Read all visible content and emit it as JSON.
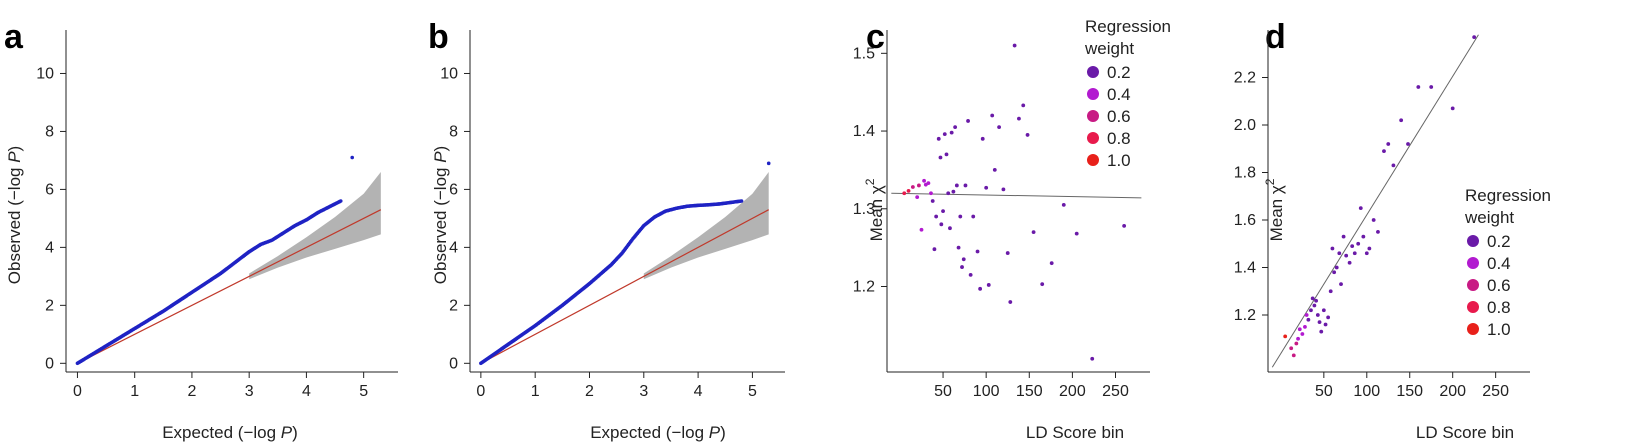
{
  "chart_data": [
    {
      "panel_label": "a",
      "type": "scatter",
      "xlabel": "Expected (−log P)",
      "ylabel": "Observed (−log P)",
      "xlim": [
        -0.2,
        5.6
      ],
      "ylim": [
        -0.3,
        11.5
      ],
      "xticks": [
        0,
        1,
        2,
        3,
        4,
        5
      ],
      "yticks": [
        0,
        2,
        4,
        6,
        8,
        10
      ],
      "points_color": "#1f23c4",
      "ref_line_color": "#c0392b",
      "band_color": "#b3b3b3",
      "series": [
        {
          "kind": "qq-curve",
          "x": [
            0,
            0.5,
            1.0,
            1.5,
            2.0,
            2.5,
            3.0,
            3.2,
            3.4,
            3.6,
            3.8,
            4.0,
            4.2,
            4.4,
            4.6,
            4.8
          ],
          "y": [
            0,
            0.6,
            1.2,
            1.8,
            2.45,
            3.1,
            3.85,
            4.1,
            4.25,
            4.5,
            4.75,
            4.95,
            5.2,
            5.4,
            5.6,
            7.1
          ]
        }
      ],
      "band": {
        "x": [
          3.0,
          3.5,
          4.0,
          4.5,
          5.0,
          5.3
        ],
        "lower": [
          2.9,
          3.3,
          3.65,
          3.95,
          4.25,
          4.45
        ],
        "upper": [
          3.1,
          3.7,
          4.35,
          5.05,
          5.85,
          6.6
        ]
      },
      "reference_line": {
        "x": [
          0,
          5.3
        ],
        "y": [
          0,
          5.3
        ]
      }
    },
    {
      "panel_label": "b",
      "type": "scatter",
      "xlabel": "Expected (−log P)",
      "ylabel": "Observed (−log P)",
      "xlim": [
        -0.2,
        5.6
      ],
      "ylim": [
        -0.3,
        11.5
      ],
      "xticks": [
        0,
        1,
        2,
        3,
        4,
        5
      ],
      "yticks": [
        0,
        2,
        4,
        6,
        8,
        10
      ],
      "points_color": "#1f23c4",
      "ref_line_color": "#c0392b",
      "band_color": "#b3b3b3",
      "series": [
        {
          "kind": "qq-curve",
          "x": [
            0,
            0.5,
            1.0,
            1.5,
            2.0,
            2.4,
            2.6,
            2.8,
            3.0,
            3.2,
            3.4,
            3.6,
            3.8,
            4.0,
            4.2,
            4.4,
            4.6,
            4.8,
            5.3
          ],
          "y": [
            0,
            0.65,
            1.3,
            2.0,
            2.75,
            3.4,
            3.8,
            4.3,
            4.75,
            5.05,
            5.25,
            5.35,
            5.42,
            5.45,
            5.47,
            5.5,
            5.55,
            5.6,
            6.9
          ]
        }
      ],
      "band": {
        "x": [
          3.0,
          3.5,
          4.0,
          4.5,
          5.0,
          5.3
        ],
        "lower": [
          2.9,
          3.3,
          3.65,
          3.95,
          4.25,
          4.45
        ],
        "upper": [
          3.1,
          3.7,
          4.35,
          5.05,
          5.85,
          6.6
        ]
      },
      "reference_line": {
        "x": [
          0,
          5.3
        ],
        "y": [
          0,
          5.3
        ]
      }
    },
    {
      "panel_label": "c",
      "type": "scatter",
      "xlabel": "LD Score bin",
      "ylabel": "Mean χ",
      "ylabel_sup": "2",
      "xlim": [
        -15,
        290
      ],
      "ylim": [
        1.09,
        1.53
      ],
      "xticks": [
        50,
        100,
        150,
        200,
        250
      ],
      "yticks": [
        1.2,
        1.3,
        1.4,
        1.5
      ],
      "legend_title": [
        "Regression",
        "weight"
      ],
      "legend_position": "top-right",
      "legend": [
        {
          "label": "0.2",
          "color": "#6a1aa8"
        },
        {
          "label": "0.4",
          "color": "#b21ad0"
        },
        {
          "label": "0.6",
          "color": "#c81a84"
        },
        {
          "label": "0.8",
          "color": "#e81a4c"
        },
        {
          "label": "1.0",
          "color": "#e8201a"
        }
      ],
      "points": [
        [
          5,
          1.32,
          0.9
        ],
        [
          10,
          1.323,
          0.8
        ],
        [
          15,
          1.328,
          0.6
        ],
        [
          20,
          1.315,
          0.5
        ],
        [
          22,
          1.33,
          0.6
        ],
        [
          25,
          1.273,
          0.4
        ],
        [
          28,
          1.336,
          0.5
        ],
        [
          30,
          1.331,
          0.5
        ],
        [
          33,
          1.333,
          0.4
        ],
        [
          36,
          1.32,
          0.4
        ],
        [
          38,
          1.31,
          0.3
        ],
        [
          40,
          1.248,
          0.3
        ],
        [
          42,
          1.29,
          0.3
        ],
        [
          45,
          1.39,
          0.3
        ],
        [
          47,
          1.366,
          0.3
        ],
        [
          48,
          1.28,
          0.3
        ],
        [
          50,
          1.297,
          0.3
        ],
        [
          52,
          1.396,
          0.2
        ],
        [
          54,
          1.37,
          0.2
        ],
        [
          56,
          1.32,
          0.2
        ],
        [
          58,
          1.275,
          0.2
        ],
        [
          60,
          1.398,
          0.2
        ],
        [
          62,
          1.322,
          0.2
        ],
        [
          64,
          1.405,
          0.2
        ],
        [
          66,
          1.33,
          0.2
        ],
        [
          68,
          1.25,
          0.2
        ],
        [
          70,
          1.29,
          0.2
        ],
        [
          72,
          1.225,
          0.2
        ],
        [
          74,
          1.235,
          0.2
        ],
        [
          76,
          1.33,
          0.2
        ],
        [
          79,
          1.413,
          0.2
        ],
        [
          82,
          1.215,
          0.2
        ],
        [
          85,
          1.29,
          0.2
        ],
        [
          90,
          1.245,
          0.2
        ],
        [
          93,
          1.197,
          0.2
        ],
        [
          96,
          1.39,
          0.2
        ],
        [
          100,
          1.327,
          0.2
        ],
        [
          103,
          1.202,
          0.2
        ],
        [
          107,
          1.42,
          0.2
        ],
        [
          110,
          1.35,
          0.2
        ],
        [
          115,
          1.405,
          0.2
        ],
        [
          120,
          1.325,
          0.2
        ],
        [
          125,
          1.243,
          0.2
        ],
        [
          128,
          1.18,
          0.2
        ],
        [
          133,
          1.51,
          0.2
        ],
        [
          138,
          1.416,
          0.2
        ],
        [
          143,
          1.433,
          0.2
        ],
        [
          148,
          1.395,
          0.2
        ],
        [
          155,
          1.27,
          0.2
        ],
        [
          165,
          1.203,
          0.2
        ],
        [
          176,
          1.23,
          0.2
        ],
        [
          190,
          1.305,
          0.2
        ],
        [
          205,
          1.268,
          0.2
        ],
        [
          223,
          1.107,
          0.2
        ],
        [
          260,
          1.278,
          0.2
        ]
      ],
      "reference_line": {
        "x": [
          -10,
          280
        ],
        "y": [
          1.32,
          1.314
        ]
      },
      "line_color": "#666666"
    },
    {
      "panel_label": "d",
      "type": "scatter",
      "xlabel": "LD Score bin",
      "ylabel": "Mean χ",
      "ylabel_sup": "2",
      "xlim": [
        -15,
        290
      ],
      "ylim": [
        0.96,
        2.4
      ],
      "xticks": [
        50,
        100,
        150,
        200,
        250
      ],
      "yticks": [
        1.2,
        1.4,
        1.6,
        1.8,
        2.0,
        2.2
      ],
      "legend_title": [
        "Regression",
        "weight"
      ],
      "legend_position": "right",
      "legend": [
        {
          "label": "0.2",
          "color": "#6a1aa8"
        },
        {
          "label": "0.4",
          "color": "#b21ad0"
        },
        {
          "label": "0.6",
          "color": "#c81a84"
        },
        {
          "label": "0.8",
          "color": "#e81a4c"
        },
        {
          "label": "1.0",
          "color": "#e8201a"
        }
      ],
      "points": [
        [
          5,
          1.11,
          1.0
        ],
        [
          12,
          1.06,
          0.7
        ],
        [
          15,
          1.03,
          0.6
        ],
        [
          18,
          1.08,
          0.6
        ],
        [
          20,
          1.1,
          0.5
        ],
        [
          22,
          1.14,
          0.5
        ],
        [
          25,
          1.12,
          0.4
        ],
        [
          28,
          1.15,
          0.4
        ],
        [
          30,
          1.2,
          0.4
        ],
        [
          32,
          1.18,
          0.3
        ],
        [
          35,
          1.22,
          0.3
        ],
        [
          37,
          1.27,
          0.3
        ],
        [
          39,
          1.24,
          0.3
        ],
        [
          41,
          1.26,
          0.3
        ],
        [
          43,
          1.2,
          0.3
        ],
        [
          45,
          1.17,
          0.3
        ],
        [
          47,
          1.13,
          0.3
        ],
        [
          50,
          1.22,
          0.2
        ],
        [
          52,
          1.16,
          0.2
        ],
        [
          55,
          1.19,
          0.2
        ],
        [
          58,
          1.3,
          0.2
        ],
        [
          60,
          1.48,
          0.2
        ],
        [
          62,
          1.38,
          0.2
        ],
        [
          65,
          1.4,
          0.2
        ],
        [
          68,
          1.46,
          0.2
        ],
        [
          70,
          1.33,
          0.2
        ],
        [
          73,
          1.53,
          0.2
        ],
        [
          76,
          1.45,
          0.2
        ],
        [
          80,
          1.42,
          0.2
        ],
        [
          83,
          1.49,
          0.2
        ],
        [
          86,
          1.46,
          0.2
        ],
        [
          90,
          1.5,
          0.2
        ],
        [
          93,
          1.65,
          0.2
        ],
        [
          96,
          1.53,
          0.2
        ],
        [
          100,
          1.46,
          0.2
        ],
        [
          103,
          1.48,
          0.2
        ],
        [
          108,
          1.6,
          0.2
        ],
        [
          113,
          1.55,
          0.2
        ],
        [
          120,
          1.89,
          0.2
        ],
        [
          125,
          1.92,
          0.2
        ],
        [
          131,
          1.83,
          0.2
        ],
        [
          140,
          2.02,
          0.2
        ],
        [
          148,
          1.92,
          0.2
        ],
        [
          160,
          2.16,
          0.2
        ],
        [
          175,
          2.16,
          0.2
        ],
        [
          200,
          2.07,
          0.2
        ],
        [
          225,
          2.37,
          0.2
        ]
      ],
      "reference_line": {
        "x": [
          -10,
          230
        ],
        "y": [
          0.98,
          2.38
        ]
      },
      "line_color": "#666666"
    }
  ]
}
